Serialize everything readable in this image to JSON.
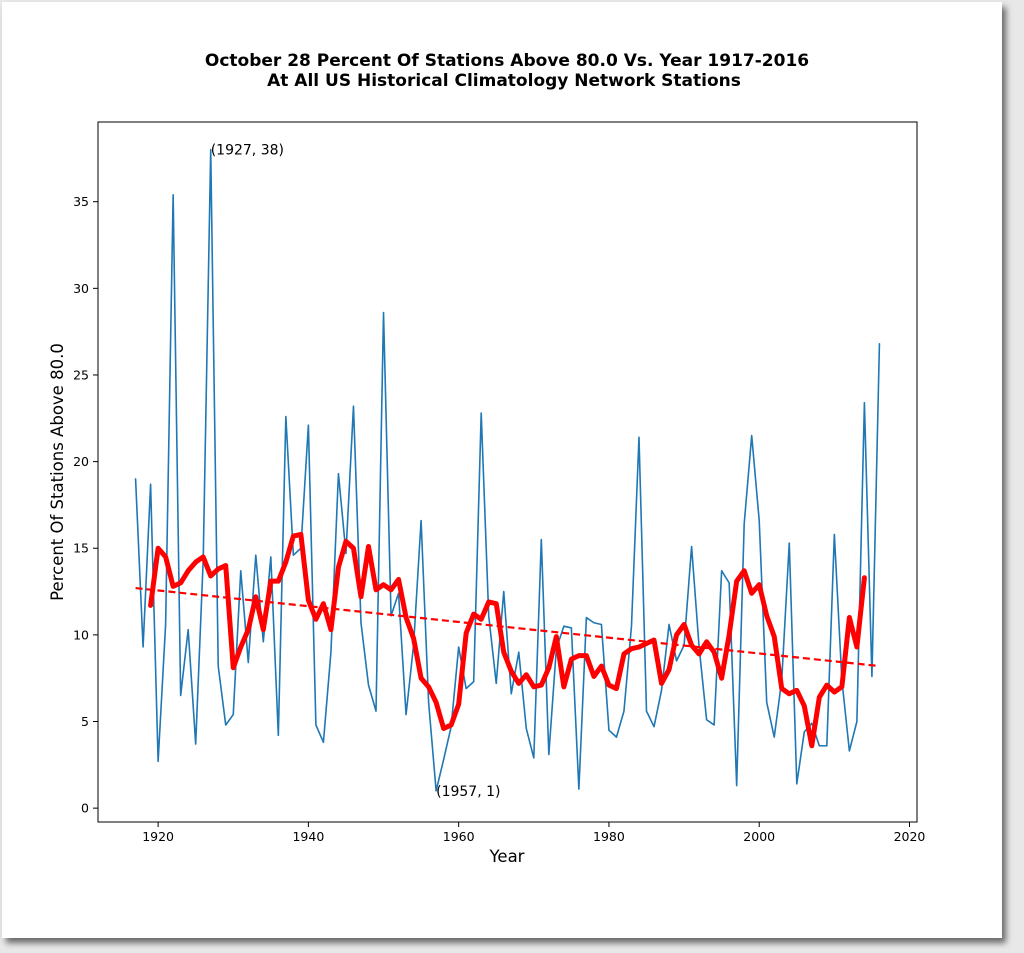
{
  "chart_data": {
    "type": "line",
    "title": "October 28 Percent Of Stations Above 80.0 Vs. Year 1917-2016",
    "subtitle": "At All US Historical Climatology Network Stations",
    "xlabel": "Year",
    "ylabel": "Percent Of Stations Above 80.0",
    "xlim": [
      1912,
      2021
    ],
    "ylim": [
      -0.8,
      39.6
    ],
    "xticks": [
      1920,
      1940,
      1960,
      1980,
      2000,
      2020
    ],
    "yticks": [
      0,
      5,
      10,
      15,
      20,
      25,
      30,
      35
    ],
    "grid": false,
    "series": [
      {
        "color": "#1f77b4",
        "x": [
          1917,
          1918,
          1919,
          1920,
          1921,
          1922,
          1923,
          1924,
          1925,
          1926,
          1927,
          1928,
          1929,
          1930,
          1931,
          1932,
          1933,
          1934,
          1935,
          1936,
          1937,
          1938,
          1939,
          1940,
          1941,
          1942,
          1943,
          1944,
          1945,
          1946,
          1947,
          1948,
          1949,
          1950,
          1951,
          1952,
          1953,
          1954,
          1955,
          1956,
          1957,
          1958,
          1959,
          1960,
          1961,
          1962,
          1963,
          1964,
          1965,
          1966,
          1967,
          1968,
          1969,
          1970,
          1971,
          1972,
          1973,
          1974,
          1975,
          1976,
          1977,
          1978,
          1979,
          1980,
          1981,
          1982,
          1983,
          1984,
          1985,
          1986,
          1987,
          1988,
          1989,
          1990,
          1991,
          1992,
          1993,
          1994,
          1995,
          1996,
          1997,
          1998,
          1999,
          2000,
          2001,
          2002,
          2003,
          2004,
          2005,
          2006,
          2007,
          2008,
          2009,
          2010,
          2011,
          2012,
          2013,
          2014,
          2015,
          2016
        ],
        "values": [
          19.0,
          9.3,
          18.7,
          2.7,
          10.6,
          35.4,
          6.5,
          10.3,
          3.7,
          14.3,
          38.0,
          8.2,
          4.8,
          5.4,
          13.7,
          8.4,
          14.6,
          9.6,
          14.5,
          4.2,
          22.6,
          14.6,
          15.0,
          22.1,
          4.8,
          3.8,
          9.0,
          19.3,
          14.7,
          23.2,
          10.7,
          7.1,
          5.6,
          28.6,
          11.1,
          12.4,
          5.4,
          9.4,
          16.6,
          6.1,
          1.0,
          2.8,
          4.7,
          9.3,
          6.9,
          7.3,
          22.8,
          11.1,
          7.2,
          12.5,
          6.6,
          9.0,
          4.6,
          2.9,
          15.5,
          3.1,
          9.2,
          10.5,
          10.4,
          1.1,
          11.0,
          10.7,
          10.6,
          4.5,
          4.1,
          5.6,
          10.5,
          21.4,
          5.6,
          4.7,
          6.8,
          10.6,
          8.5,
          9.4,
          15.1,
          9.3,
          5.1,
          4.8,
          13.7,
          13.0,
          1.3,
          16.4,
          21.5,
          16.6,
          6.1,
          4.1,
          7.4,
          15.3,
          1.4,
          4.4,
          4.9,
          3.6,
          3.6,
          15.8,
          7.4,
          3.3,
          5.0,
          23.4,
          7.6,
          26.8
        ]
      },
      {
        "color": "#ff0000",
        "x": [
          1919,
          1920,
          1921,
          1922,
          1923,
          1924,
          1925,
          1926,
          1927,
          1928,
          1929,
          1930,
          1931,
          1932,
          1933,
          1934,
          1935,
          1936,
          1937,
          1938,
          1939,
          1940,
          1941,
          1942,
          1943,
          1944,
          1945,
          1946,
          1947,
          1948,
          1949,
          1950,
          1951,
          1952,
          1953,
          1954,
          1955,
          1956,
          1957,
          1958,
          1959,
          1960,
          1961,
          1962,
          1963,
          1964,
          1965,
          1966,
          1967,
          1968,
          1969,
          1970,
          1971,
          1972,
          1973,
          1974,
          1975,
          1976,
          1977,
          1978,
          1979,
          1980,
          1981,
          1982,
          1983,
          1984,
          1985,
          1986,
          1987,
          1988,
          1989,
          1990,
          1991,
          1992,
          1993,
          1994,
          1995,
          1996,
          1997,
          1998,
          1999,
          2000,
          2001,
          2002,
          2003,
          2004,
          2005,
          2006,
          2007,
          2008,
          2009,
          2010,
          2011,
          2012,
          2013,
          2014
        ],
        "values": [
          11.7,
          15.0,
          14.5,
          12.8,
          13.0,
          13.7,
          14.2,
          14.5,
          13.4,
          13.8,
          14.0,
          8.1,
          9.3,
          10.3,
          12.2,
          10.3,
          13.1,
          13.1,
          14.2,
          15.7,
          15.8,
          12.0,
          10.9,
          11.8,
          10.3,
          13.9,
          15.4,
          15.0,
          12.2,
          15.1,
          12.6,
          12.9,
          12.6,
          13.2,
          11.0,
          9.8,
          7.5,
          7.0,
          6.1,
          4.6,
          4.8,
          6.0,
          10.1,
          11.2,
          10.9,
          11.9,
          11.8,
          9.0,
          7.9,
          7.2,
          7.7,
          7.0,
          7.1,
          8.1,
          9.9,
          7.0,
          8.6,
          8.8,
          8.8,
          7.6,
          8.2,
          7.1,
          6.9,
          8.9,
          9.2,
          9.3,
          9.5,
          9.7,
          7.2,
          8.0,
          10.0,
          10.6,
          9.4,
          8.9,
          9.6,
          9.0,
          7.5,
          10.0,
          13.1,
          13.7,
          12.4,
          12.9,
          11.1,
          9.9,
          6.9,
          6.6,
          6.8,
          5.9,
          3.6,
          6.4,
          7.1,
          6.7,
          7.0,
          11.0,
          9.3,
          13.3
        ]
      },
      {
        "color": "#ff0000",
        "style": "dashed",
        "x": [
          1917,
          2016
        ],
        "values": [
          12.7,
          8.2
        ]
      }
    ],
    "annotations": [
      {
        "text": "(1927, 38)",
        "x": 1927,
        "y": 38
      },
      {
        "text": "(1957, 1)",
        "x": 1957,
        "y": 1
      }
    ]
  }
}
